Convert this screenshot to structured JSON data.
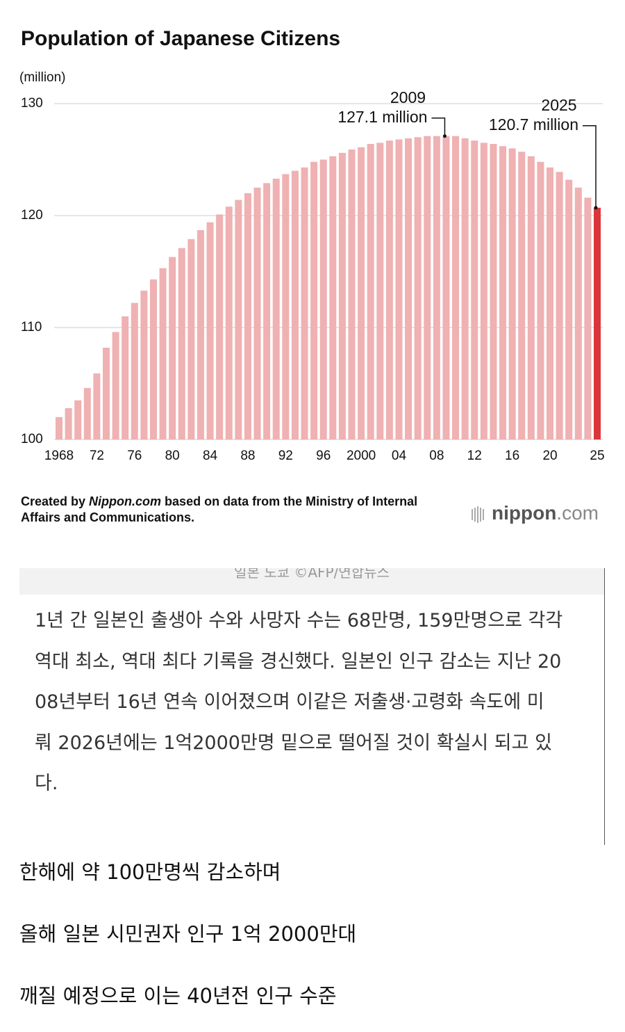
{
  "chart_data": {
    "type": "bar",
    "title": "Population of Japanese Citizens",
    "y_unit": "(million)",
    "categories": [
      "1968",
      null,
      null,
      null,
      "72",
      null,
      null,
      null,
      "76",
      null,
      null,
      null,
      "80",
      null,
      null,
      null,
      "84",
      null,
      null,
      null,
      "88",
      null,
      null,
      null,
      "92",
      null,
      null,
      null,
      "96",
      null,
      null,
      null,
      "2000",
      null,
      null,
      null,
      "04",
      null,
      null,
      null,
      "08",
      null,
      null,
      null,
      "12",
      null,
      null,
      null,
      "16",
      null,
      null,
      null,
      "20",
      null,
      null,
      null,
      null,
      "25"
    ],
    "values": [
      102.0,
      102.8,
      103.5,
      104.6,
      105.9,
      108.2,
      109.6,
      111.0,
      112.2,
      113.3,
      114.3,
      115.3,
      116.3,
      117.1,
      117.9,
      118.7,
      119.4,
      120.1,
      120.8,
      121.4,
      122.0,
      122.5,
      122.9,
      123.3,
      123.7,
      124.0,
      124.3,
      124.8,
      125.0,
      125.3,
      125.6,
      125.9,
      126.1,
      126.4,
      126.5,
      126.7,
      126.8,
      126.9,
      127.0,
      127.1,
      127.1,
      127.1,
      127.1,
      126.9,
      126.7,
      126.5,
      126.4,
      126.2,
      126.0,
      125.7,
      125.3,
      124.8,
      124.3,
      123.9,
      123.2,
      122.5,
      121.6,
      120.7
    ],
    "color": "#efb1b2",
    "highlight": {
      "index": 57,
      "color": "#d9363b"
    },
    "ylim": [
      100,
      130
    ],
    "yticks": [
      100,
      110,
      120,
      130
    ],
    "grid": true,
    "annotations": [
      {
        "index": 41,
        "year": "2009",
        "label": "127.1 million"
      },
      {
        "index": 57,
        "year": "2025",
        "label": "120.7 million"
      }
    ],
    "source": {
      "prefix": "Created by ",
      "site": "Nippon.com",
      "rest": " based on data from the Ministry of Internal",
      "line2": "Affairs and Communications."
    },
    "logo": {
      "main": "nippon",
      "suffix": ".com"
    }
  },
  "article": {
    "caption": "일본 도쿄 ©AFP/연합뉴스",
    "paragraph": [
      "1년 간 일본인 출생아 수와 사망자 수는 68만명, 159만명으로 각각",
      "역대 최소, 역대 최다 기록을 경신했다. 일본인 인구 감소는 지난 20",
      "08년부터 16년 연속 이어졌으며 이같은 저출생·고령화 속도에 미",
      "뤄 2026년에는 1억2000만명 밑으로 떨어질 것이 확실시 되고 있",
      "다."
    ],
    "comments": [
      "한해에 약 100만명씩 감소하며",
      "올해 일본 시민권자 인구 1억 2000만대",
      "깨질 예정으로 이는 40년전 인구 수준"
    ]
  }
}
